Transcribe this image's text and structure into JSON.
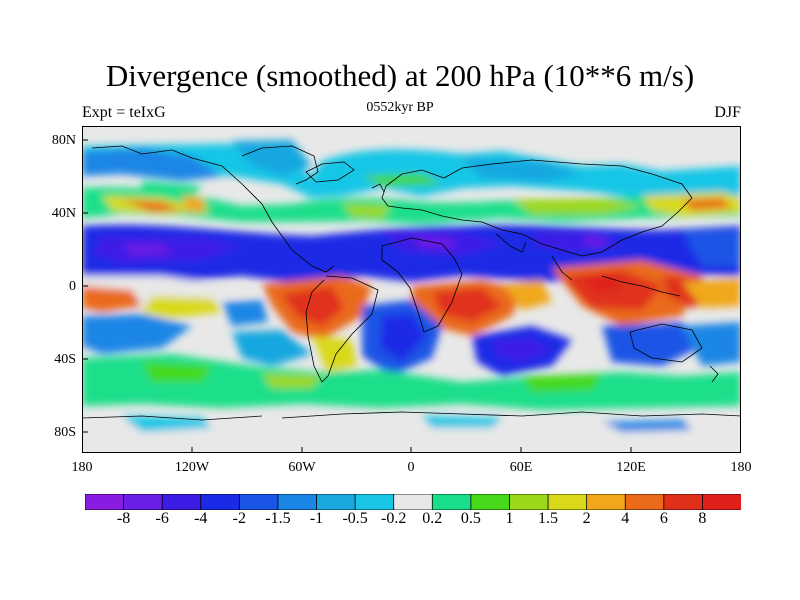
{
  "title": "Divergence (smoothed) at 200 hPa (10**6 m/s)",
  "subtitle_left": "Expt = teIxG",
  "subtitle_center": "0552kyr BP",
  "subtitle_right": "DJF",
  "lat_ticks": [
    "80N",
    "40N",
    "0",
    "40S",
    "80S"
  ],
  "lon_ticks": [
    "180",
    "120W",
    "60W",
    "0",
    "60E",
    "120E",
    "180"
  ],
  "colorbar": {
    "labels": [
      "-8",
      "-6",
      "-4",
      "-2",
      "-1.5",
      "-1",
      "-0.5",
      "-0.2",
      "0.2",
      "0.5",
      "1",
      "1.5",
      "2",
      "4",
      "6",
      "8"
    ],
    "colors": [
      "#8a1be0",
      "#6a1ee6",
      "#3d1de6",
      "#1a2ae6",
      "#1a55e6",
      "#1a86e6",
      "#19a7e0",
      "#19c6e6",
      "#e8e8e8",
      "#1adf8a",
      "#45d91a",
      "#9bd81a",
      "#d9d91a",
      "#f0a81a",
      "#ea6a1a",
      "#e0301a",
      "#e0201a"
    ]
  }
}
